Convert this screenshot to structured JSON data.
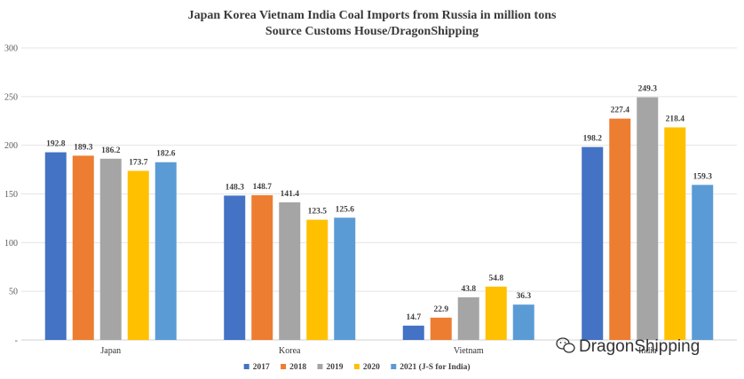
{
  "chart_data": {
    "type": "bar",
    "title": "Japan Korea Vietnam India Coal Imports from Russia in million tons",
    "subtitle": "Source Customs House/DragonShipping",
    "xlabel": "",
    "ylabel": "",
    "ylim": [
      0,
      300
    ],
    "y_ticks": [
      "-",
      "50",
      "100",
      "150",
      "200",
      "250",
      "300"
    ],
    "y_tick_values": [
      0,
      50,
      100,
      150,
      200,
      250,
      300
    ],
    "grid": "horizontal",
    "legend_position": "bottom",
    "categories": [
      "Japan",
      "Korea",
      "Vietnam",
      "India"
    ],
    "series": [
      {
        "name": "2017",
        "color": "#4472c4",
        "values": [
          192.8,
          148.3,
          14.7,
          198.2
        ]
      },
      {
        "name": "2018",
        "color": "#ed7d31",
        "values": [
          189.3,
          148.7,
          22.9,
          227.4
        ]
      },
      {
        "name": "2019",
        "color": "#a5a5a5",
        "values": [
          186.2,
          141.4,
          43.8,
          249.3
        ]
      },
      {
        "name": "2020",
        "color": "#ffc000",
        "values": [
          173.7,
          123.5,
          54.8,
          218.4
        ]
      },
      {
        "name": "2021 (J-S for India)",
        "color": "#5b9bd5",
        "values": [
          182.6,
          125.6,
          36.3,
          159.3
        ]
      }
    ]
  },
  "watermark": {
    "text": "DragonShipping",
    "icon": "wechat-icon"
  }
}
